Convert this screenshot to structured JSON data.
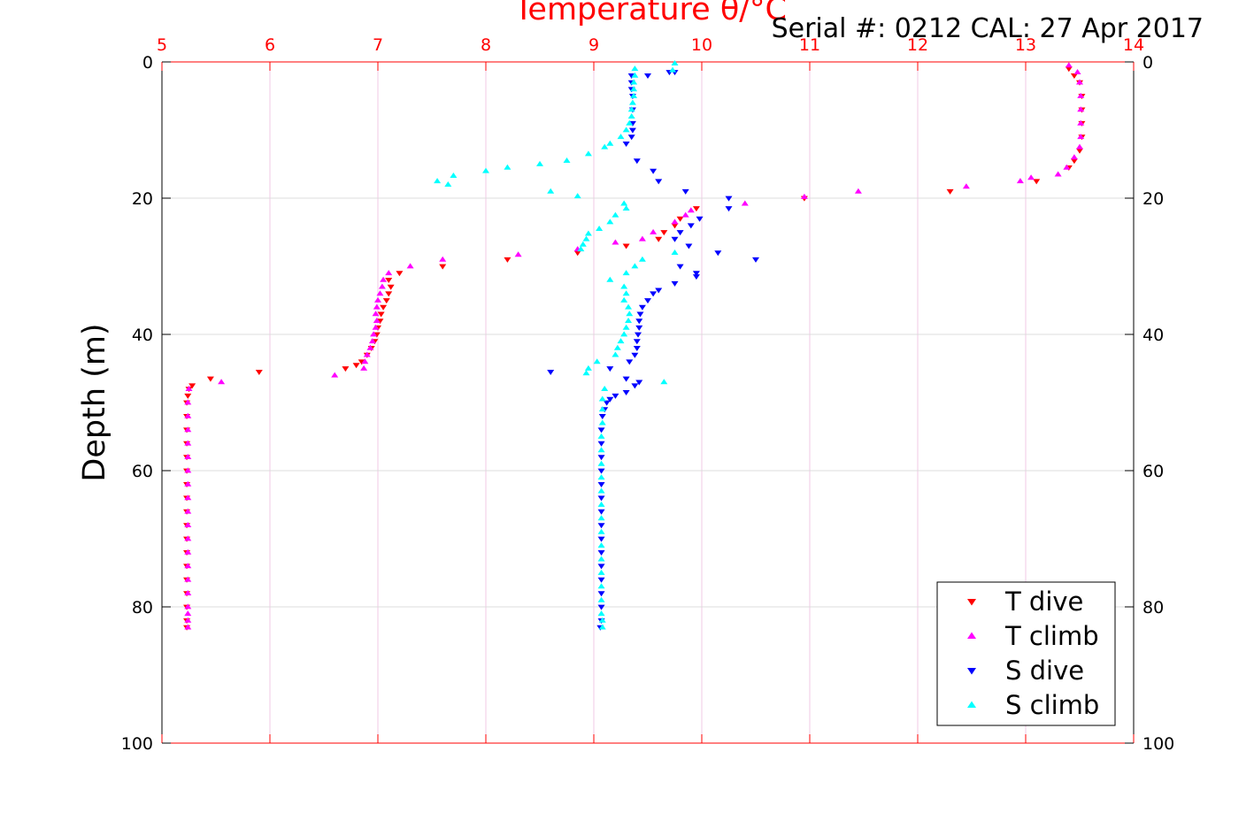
{
  "chart_data": {
    "type": "scatter",
    "title": "Temperature θ/°C",
    "serial_text": "Serial #: 0212  CAL: 27 Apr 2017",
    "xlabel": "Temperature θ/°C",
    "ylabel": "Depth (m)",
    "xlim": [
      5,
      14
    ],
    "ylim": [
      0,
      100
    ],
    "y_reversed": true,
    "x_ticks": [
      5,
      6,
      7,
      8,
      9,
      10,
      11,
      12,
      13,
      14
    ],
    "y_ticks": [
      0,
      20,
      40,
      60,
      80,
      100
    ],
    "grid": true,
    "legend_position": "bottom-right",
    "axis_color": "#ff0000",
    "series": [
      {
        "name": "T dive",
        "color": "#ff0000",
        "marker": "triangle-down",
        "points": [
          [
            13.4,
            1
          ],
          [
            13.45,
            2
          ],
          [
            13.5,
            3
          ],
          [
            13.52,
            5
          ],
          [
            13.52,
            7
          ],
          [
            13.52,
            9
          ],
          [
            13.52,
            11
          ],
          [
            13.5,
            13
          ],
          [
            13.45,
            14.5
          ],
          [
            13.4,
            15.5
          ],
          [
            13.1,
            17.5
          ],
          [
            12.3,
            19
          ],
          [
            10.95,
            20
          ],
          [
            9.95,
            21.5
          ],
          [
            9.8,
            23
          ],
          [
            9.75,
            24
          ],
          [
            9.65,
            25
          ],
          [
            9.6,
            26
          ],
          [
            9.3,
            27
          ],
          [
            8.85,
            28
          ],
          [
            8.2,
            29
          ],
          [
            7.6,
            30
          ],
          [
            7.2,
            31
          ],
          [
            7.1,
            32
          ],
          [
            7.12,
            33
          ],
          [
            7.1,
            34
          ],
          [
            7.08,
            35
          ],
          [
            7.05,
            36
          ],
          [
            7.03,
            37
          ],
          [
            7.02,
            38
          ],
          [
            7.0,
            39
          ],
          [
            6.99,
            40
          ],
          [
            6.97,
            41
          ],
          [
            6.94,
            42
          ],
          [
            6.9,
            43
          ],
          [
            6.85,
            44
          ],
          [
            6.8,
            44.5
          ],
          [
            6.7,
            45
          ],
          [
            5.9,
            45.5
          ],
          [
            5.45,
            46.5
          ],
          [
            5.28,
            47.5
          ],
          [
            5.25,
            48
          ],
          [
            5.24,
            49
          ],
          [
            5.23,
            50
          ],
          [
            5.23,
            52
          ],
          [
            5.23,
            54
          ],
          [
            5.23,
            56
          ],
          [
            5.23,
            58
          ],
          [
            5.23,
            60
          ],
          [
            5.23,
            62
          ],
          [
            5.23,
            64
          ],
          [
            5.23,
            66
          ],
          [
            5.23,
            68
          ],
          [
            5.23,
            70
          ],
          [
            5.23,
            72
          ],
          [
            5.23,
            74
          ],
          [
            5.23,
            76
          ],
          [
            5.23,
            78
          ],
          [
            5.23,
            80
          ],
          [
            5.23,
            82
          ],
          [
            5.23,
            83
          ]
        ]
      },
      {
        "name": "T climb",
        "color": "#ff00ff",
        "marker": "triangle-up",
        "points": [
          [
            13.4,
            0.5
          ],
          [
            13.48,
            1.5
          ],
          [
            13.5,
            3
          ],
          [
            13.51,
            5
          ],
          [
            13.51,
            7
          ],
          [
            13.51,
            9
          ],
          [
            13.51,
            11
          ],
          [
            13.5,
            12.5
          ],
          [
            13.45,
            14
          ],
          [
            13.38,
            15.5
          ],
          [
            13.3,
            16.5
          ],
          [
            13.05,
            17
          ],
          [
            12.95,
            17.5
          ],
          [
            12.45,
            18.3
          ],
          [
            11.45,
            19
          ],
          [
            10.95,
            19.8
          ],
          [
            10.4,
            20.8
          ],
          [
            9.9,
            21.8
          ],
          [
            9.85,
            22.5
          ],
          [
            9.75,
            23.5
          ],
          [
            9.55,
            25
          ],
          [
            9.45,
            26
          ],
          [
            9.2,
            26.5
          ],
          [
            8.85,
            27.5
          ],
          [
            8.3,
            28.3
          ],
          [
            7.6,
            29
          ],
          [
            7.3,
            30
          ],
          [
            7.1,
            31
          ],
          [
            7.05,
            32
          ],
          [
            7.04,
            33
          ],
          [
            7.02,
            34
          ],
          [
            7.0,
            35
          ],
          [
            6.99,
            36
          ],
          [
            6.98,
            37
          ],
          [
            6.99,
            38
          ],
          [
            6.98,
            39
          ],
          [
            6.96,
            40
          ],
          [
            6.95,
            41
          ],
          [
            6.93,
            42
          ],
          [
            6.9,
            43
          ],
          [
            6.88,
            44
          ],
          [
            6.87,
            45
          ],
          [
            6.6,
            46
          ],
          [
            5.55,
            47
          ],
          [
            5.25,
            48
          ],
          [
            5.24,
            50
          ],
          [
            5.24,
            52
          ],
          [
            5.24,
            54
          ],
          [
            5.24,
            56
          ],
          [
            5.24,
            58
          ],
          [
            5.24,
            60
          ],
          [
            5.24,
            62
          ],
          [
            5.24,
            64
          ],
          [
            5.24,
            66
          ],
          [
            5.24,
            68
          ],
          [
            5.24,
            70
          ],
          [
            5.24,
            72
          ],
          [
            5.24,
            74
          ],
          [
            5.24,
            76
          ],
          [
            5.24,
            78
          ],
          [
            5.24,
            80
          ],
          [
            5.24,
            81
          ],
          [
            5.24,
            82
          ],
          [
            5.24,
            83
          ]
        ]
      },
      {
        "name": "S dive",
        "color": "#0000ff",
        "marker": "triangle-down",
        "points": [
          [
            9.75,
            1.5
          ],
          [
            9.7,
            1.5
          ],
          [
            9.5,
            2
          ],
          [
            9.35,
            2
          ],
          [
            9.35,
            3
          ],
          [
            9.35,
            4
          ],
          [
            9.36,
            5
          ],
          [
            9.36,
            7
          ],
          [
            9.36,
            9
          ],
          [
            9.36,
            10
          ],
          [
            9.35,
            11
          ],
          [
            9.3,
            12
          ],
          [
            9.4,
            14.5
          ],
          [
            9.55,
            16
          ],
          [
            9.6,
            17.5
          ],
          [
            9.85,
            19
          ],
          [
            10.25,
            20
          ],
          [
            10.25,
            21.5
          ],
          [
            9.98,
            23
          ],
          [
            9.9,
            24
          ],
          [
            9.8,
            25
          ],
          [
            9.75,
            26
          ],
          [
            9.88,
            27
          ],
          [
            10.15,
            28
          ],
          [
            10.5,
            29
          ],
          [
            9.8,
            30
          ],
          [
            9.95,
            31
          ],
          [
            9.95,
            31.5
          ],
          [
            9.75,
            32.5
          ],
          [
            9.6,
            33.5
          ],
          [
            9.55,
            34
          ],
          [
            9.5,
            35
          ],
          [
            9.45,
            36
          ],
          [
            9.43,
            37
          ],
          [
            9.42,
            38
          ],
          [
            9.42,
            39
          ],
          [
            9.41,
            40
          ],
          [
            9.4,
            41
          ],
          [
            9.4,
            42
          ],
          [
            9.38,
            43
          ],
          [
            9.33,
            44
          ],
          [
            9.15,
            45
          ],
          [
            8.6,
            45.5
          ],
          [
            9.3,
            46.5
          ],
          [
            9.42,
            47
          ],
          [
            9.38,
            47.5
          ],
          [
            9.3,
            48.5
          ],
          [
            9.2,
            49
          ],
          [
            9.15,
            49.5
          ],
          [
            9.12,
            50
          ],
          [
            9.1,
            51
          ],
          [
            9.08,
            52
          ],
          [
            9.07,
            54
          ],
          [
            9.07,
            56
          ],
          [
            9.07,
            58
          ],
          [
            9.07,
            60
          ],
          [
            9.07,
            62
          ],
          [
            9.07,
            64
          ],
          [
            9.07,
            66
          ],
          [
            9.07,
            68
          ],
          [
            9.07,
            70
          ],
          [
            9.07,
            72
          ],
          [
            9.07,
            74
          ],
          [
            9.07,
            76
          ],
          [
            9.07,
            78
          ],
          [
            9.07,
            80
          ],
          [
            9.07,
            82
          ],
          [
            9.06,
            83
          ]
        ]
      },
      {
        "name": "S climb",
        "color": "#00ffff",
        "marker": "triangle-up",
        "points": [
          [
            9.75,
            0.2
          ],
          [
            9.73,
            1.2
          ],
          [
            9.38,
            1
          ],
          [
            9.38,
            2
          ],
          [
            9.37,
            3
          ],
          [
            9.37,
            4
          ],
          [
            9.37,
            5
          ],
          [
            9.36,
            6
          ],
          [
            9.35,
            7
          ],
          [
            9.35,
            8
          ],
          [
            9.33,
            9
          ],
          [
            9.3,
            10
          ],
          [
            9.25,
            11
          ],
          [
            9.15,
            12
          ],
          [
            9.1,
            12.5
          ],
          [
            8.95,
            13.5
          ],
          [
            8.75,
            14.5
          ],
          [
            8.5,
            15
          ],
          [
            8.2,
            15.5
          ],
          [
            8.0,
            16
          ],
          [
            7.7,
            16.7
          ],
          [
            7.55,
            17.5
          ],
          [
            7.65,
            18
          ],
          [
            8.6,
            19
          ],
          [
            8.85,
            19.7
          ],
          [
            9.28,
            20.8
          ],
          [
            9.3,
            21.5
          ],
          [
            9.2,
            22.5
          ],
          [
            9.15,
            23.5
          ],
          [
            9.05,
            24.5
          ],
          [
            8.95,
            25.2
          ],
          [
            8.93,
            26
          ],
          [
            8.9,
            26.8
          ],
          [
            8.88,
            27.5
          ],
          [
            9.75,
            28
          ],
          [
            9.45,
            29
          ],
          [
            9.38,
            30
          ],
          [
            9.3,
            31
          ],
          [
            9.15,
            32
          ],
          [
            9.28,
            33
          ],
          [
            9.3,
            34
          ],
          [
            9.28,
            35
          ],
          [
            9.32,
            36
          ],
          [
            9.33,
            37
          ],
          [
            9.32,
            38
          ],
          [
            9.3,
            39
          ],
          [
            9.28,
            40
          ],
          [
            9.25,
            41
          ],
          [
            9.22,
            42
          ],
          [
            9.2,
            43
          ],
          [
            9.03,
            44
          ],
          [
            8.95,
            45
          ],
          [
            8.93,
            45.7
          ],
          [
            9.65,
            47
          ],
          [
            9.1,
            48
          ],
          [
            9.08,
            49.5
          ],
          [
            9.08,
            51
          ],
          [
            9.08,
            53
          ],
          [
            9.07,
            55
          ],
          [
            9.07,
            57
          ],
          [
            9.07,
            59
          ],
          [
            9.07,
            61
          ],
          [
            9.07,
            63
          ],
          [
            9.07,
            65
          ],
          [
            9.07,
            67
          ],
          [
            9.07,
            69
          ],
          [
            9.07,
            71
          ],
          [
            9.07,
            73
          ],
          [
            9.07,
            75
          ],
          [
            9.07,
            77
          ],
          [
            9.07,
            79
          ],
          [
            9.07,
            81
          ],
          [
            9.08,
            82
          ],
          [
            9.08,
            83
          ]
        ]
      }
    ]
  }
}
